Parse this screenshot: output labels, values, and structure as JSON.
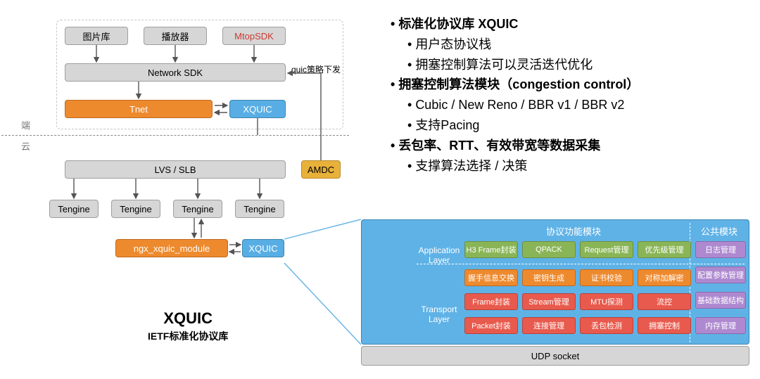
{
  "bullets": {
    "items": [
      {
        "lvl": 1,
        "bold": true,
        "text": "标准化协议库 XQUIC",
        "html": "标准化协议库 <b>XQUIC</b>"
      },
      {
        "lvl": 2,
        "text": "用户态协议栈"
      },
      {
        "lvl": 2,
        "text": "拥塞控制算法可以灵活迭代优化"
      },
      {
        "lvl": 1,
        "bold": true,
        "text": "拥塞控制算法模块（congestion control）"
      },
      {
        "lvl": 2,
        "text": "Cubic / New Reno / BBR v1 / BBR v2"
      },
      {
        "lvl": 2,
        "text": "支持Pacing"
      },
      {
        "lvl": 1,
        "bold": true,
        "text": "丢包率、RTT、有效带宽等数据采集"
      },
      {
        "lvl": 2,
        "text": "支撑算法选择 / 决策"
      }
    ]
  },
  "side_labels": {
    "client": "端",
    "cloud": "云"
  },
  "arch": {
    "row0": {
      "imglib": "图片库",
      "player": "播放器",
      "mtop": "MtopSDK"
    },
    "sdk": "Network SDK",
    "tnet": "Tnet",
    "xquic1": "XQUIC",
    "policy": "quic策略下发",
    "lvs": "LVS / SLB",
    "amdc": "AMDC",
    "tengine": "Tengine",
    "ngx": "ngx_xquic_module",
    "xquic2": "XQUIC"
  },
  "title": {
    "big": "XQUIC",
    "sub": "IETF标准化协议库"
  },
  "panel": {
    "hdr_proto": "协议功能模块",
    "hdr_pub": "公共模块",
    "app_layer": "Application\nLayer",
    "trn_layer": "Transport\nLayer",
    "greens": [
      "H3 Frame封装",
      "QPACK",
      "Request管理",
      "优先级管理"
    ],
    "oranges": [
      "握手信息交换",
      "密钥生成",
      "证书校验",
      "对称加解密"
    ],
    "reds1": [
      "Frame封装",
      "Stream管理",
      "MTU探测",
      "流控"
    ],
    "reds2": [
      "Packet封装",
      "连接管理",
      "丢包检测",
      "拥塞控制"
    ],
    "purples": [
      "日志管理",
      "配置参数管理",
      "基础数据结构",
      "内存管理"
    ],
    "udp": "UDP socket"
  },
  "colors": {
    "gray": "#d6d6d6",
    "orange": "#ee8a2e",
    "blue": "#58aee4",
    "gold": "#e8b13a",
    "green": "#8ab557",
    "red": "#e85a4d",
    "purple": "#ae89d0"
  }
}
